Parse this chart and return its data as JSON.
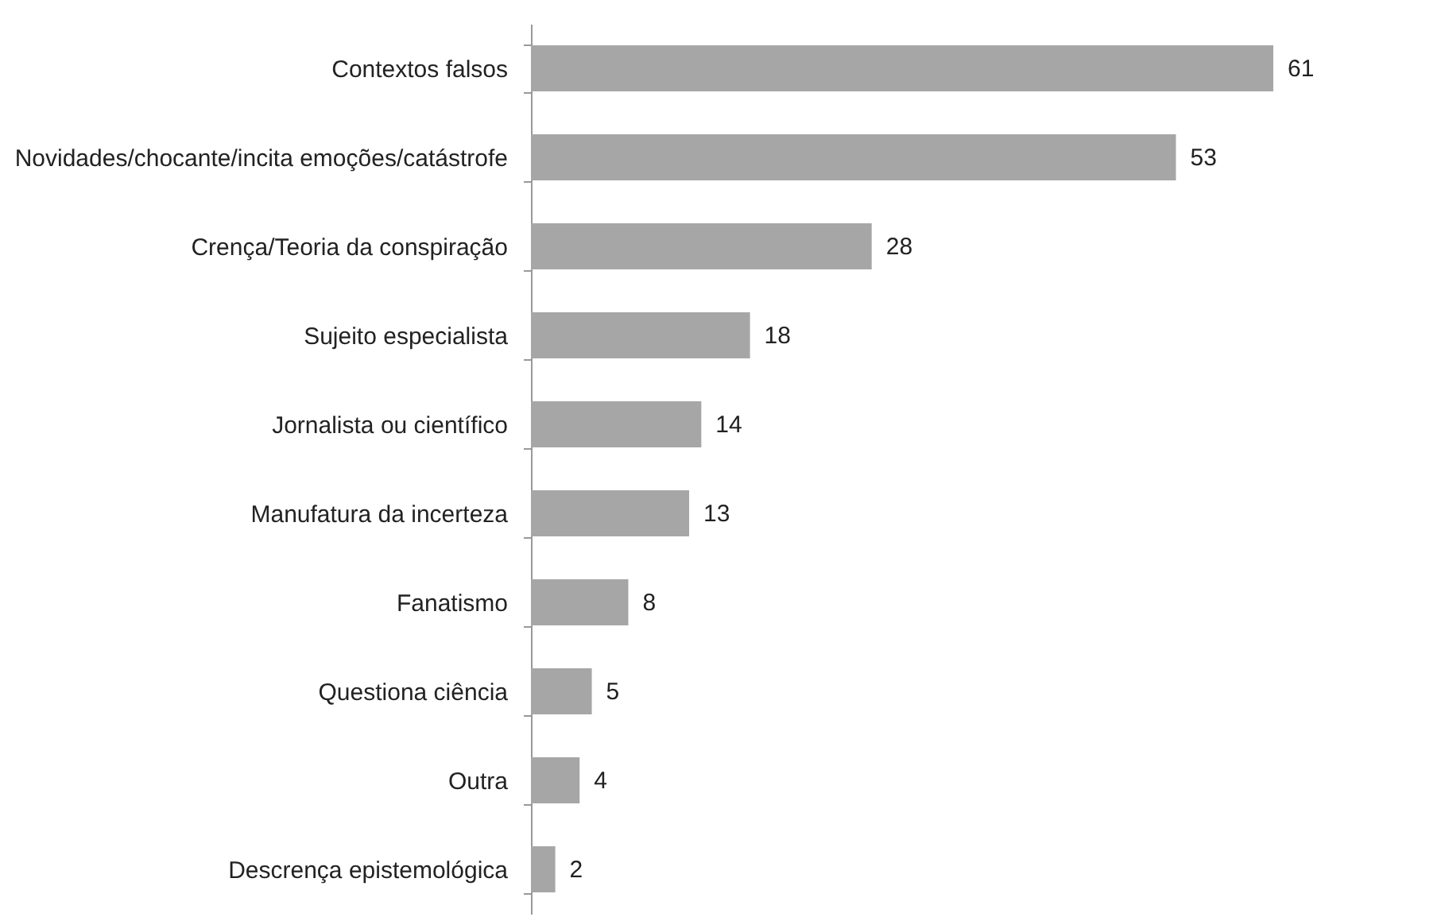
{
  "chart_data": {
    "type": "bar",
    "orientation": "horizontal",
    "categories": [
      "Contextos falsos",
      "Novidades/chocante/incita emoções/catástrofe",
      "Crença/Teoria da conspiração",
      "Sujeito especialista",
      "Jornalista ou científico",
      "Manufatura da incerteza",
      "Fanatismo",
      "Questiona ciência",
      "Outra",
      "Descrença epistemológica"
    ],
    "values": [
      61,
      53,
      28,
      18,
      14,
      13,
      8,
      5,
      4,
      2
    ],
    "color": "#a6a6a6",
    "data_labels": true
  }
}
